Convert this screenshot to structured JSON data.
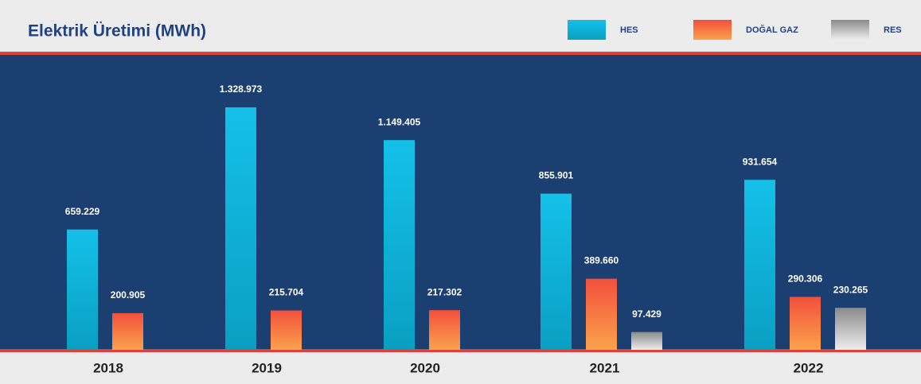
{
  "chart_data": {
    "type": "bar",
    "title": "Elektrik Üretimi (MWh)",
    "categories": [
      "2018",
      "2019",
      "2020",
      "2021",
      "2022"
    ],
    "series": [
      {
        "name": "HES",
        "color": "#14c0e8",
        "values": [
          659229,
          1328973,
          1149405,
          855901,
          931654
        ],
        "value_labels": [
          "659.229",
          "1.328.973",
          "1.149.405",
          "855.901",
          "931.654"
        ]
      },
      {
        "name": "DOĞAL GAZ",
        "color": "#f2503c",
        "values": [
          200905,
          215704,
          217302,
          389660,
          290306
        ],
        "value_labels": [
          "200.905",
          "215.704",
          "217.302",
          "389.660",
          "290.306"
        ]
      },
      {
        "name": "RES",
        "color": "#8a8a8a",
        "values": [
          null,
          null,
          null,
          97429,
          230265
        ],
        "value_labels": [
          null,
          null,
          null,
          "97.429",
          "230.265"
        ]
      }
    ]
  }
}
